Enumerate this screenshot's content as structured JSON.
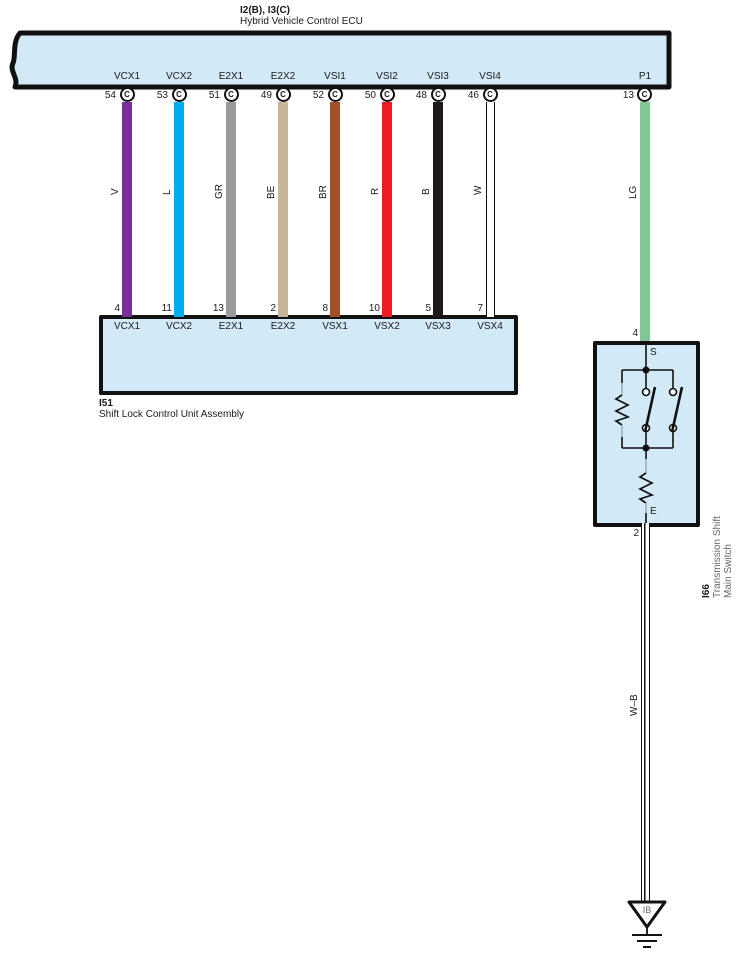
{
  "ecu": {
    "code": "I2(B), I3(C)",
    "name": "Hybrid Vehicle Control ECU"
  },
  "pin_circle_letter": "C",
  "wires": [
    {
      "ecu_terminal": "VCX1",
      "ecu_pin": "54",
      "color_code": "V",
      "color_hex": "#7B2E99",
      "outlined": false,
      "unit_pin": "4",
      "unit_terminal": "VCX1"
    },
    {
      "ecu_terminal": "VCX2",
      "ecu_pin": "53",
      "color_code": "L",
      "color_hex": "#00AEEF",
      "outlined": false,
      "unit_pin": "11",
      "unit_terminal": "VCX2"
    },
    {
      "ecu_terminal": "E2X1",
      "ecu_pin": "51",
      "color_code": "GR",
      "color_hex": "#9B9B9D",
      "outlined": false,
      "unit_pin": "13",
      "unit_terminal": "E2X1"
    },
    {
      "ecu_terminal": "E2X2",
      "ecu_pin": "49",
      "color_code": "BE",
      "color_hex": "#C9B69A",
      "outlined": false,
      "unit_pin": "2",
      "unit_terminal": "E2X2"
    },
    {
      "ecu_terminal": "VSI1",
      "ecu_pin": "52",
      "color_code": "BR",
      "color_hex": "#A3502A",
      "outlined": false,
      "unit_pin": "8",
      "unit_terminal": "VSX1"
    },
    {
      "ecu_terminal": "VSI2",
      "ecu_pin": "50",
      "color_code": "R",
      "color_hex": "#EC1B24",
      "outlined": false,
      "unit_pin": "10",
      "unit_terminal": "VSX2"
    },
    {
      "ecu_terminal": "VSI3",
      "ecu_pin": "48",
      "color_code": "B",
      "color_hex": "#1E1A1B",
      "outlined": false,
      "unit_pin": "5",
      "unit_terminal": "VSX3"
    },
    {
      "ecu_terminal": "VSI4",
      "ecu_pin": "46",
      "color_code": "W",
      "color_hex": "#FFFFFF",
      "outlined": true,
      "unit_pin": "7",
      "unit_terminal": "VSX4"
    }
  ],
  "p1_wire": {
    "ecu_terminal": "P1",
    "ecu_pin": "13",
    "color_code": "LG",
    "color_hex": "#80C795",
    "switch_pin": "4"
  },
  "shift_lock_unit": {
    "code": "I51",
    "name": "Shift Lock Control Unit Assembly"
  },
  "main_switch": {
    "code": "I66",
    "name_line1": "Transmission Shift",
    "name_line2": "Main Switch",
    "top_terminal": "S",
    "bottom_terminal": "E",
    "bottom_pin": "2"
  },
  "ground_wire": {
    "color_code": "W–B"
  },
  "ground": {
    "label": "IB"
  },
  "colors": {
    "panel_fill": "#D2E9F7",
    "line": "#111111"
  }
}
